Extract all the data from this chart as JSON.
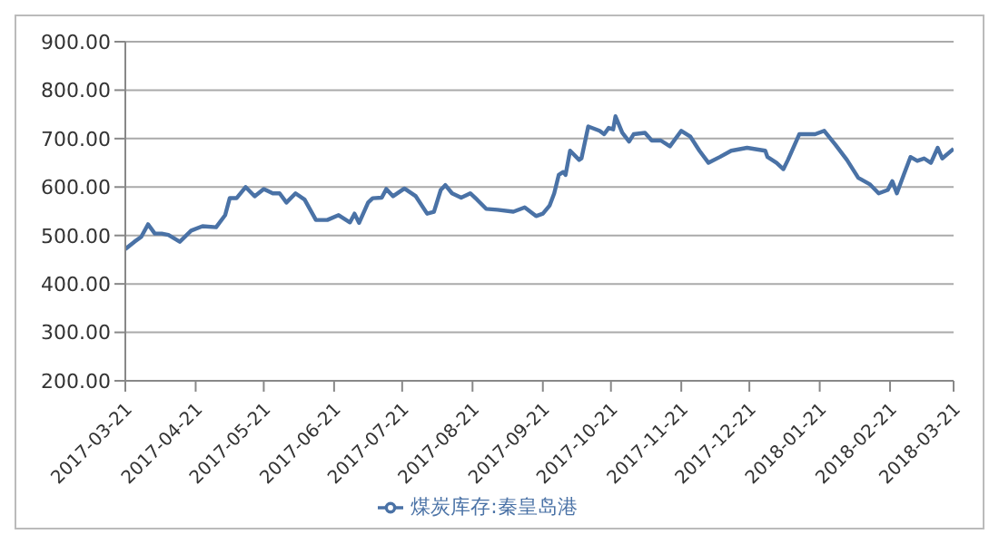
{
  "chart_data": {
    "type": "line",
    "legend": "bottom",
    "grid": "y",
    "marker": "none",
    "line_style": "solid",
    "xlim": [
      "2017-03-21",
      "2018-03-21"
    ],
    "xticks": [
      "2017-03-21",
      "2017-04-21",
      "2017-05-21",
      "2017-06-21",
      "2017-07-21",
      "2017-08-21",
      "2017-09-21",
      "2017-10-21",
      "2017-11-21",
      "2017-12-21",
      "2018-01-21",
      "2018-02-21",
      "2018-03-21"
    ],
    "ylim": [
      200,
      900
    ],
    "yticks": [
      {
        "value": 200,
        "label": "200.00"
      },
      {
        "value": 300,
        "label": "300.00"
      },
      {
        "value": 400,
        "label": "400.00"
      },
      {
        "value": 500,
        "label": "500.00"
      },
      {
        "value": 600,
        "label": "600.00"
      },
      {
        "value": 700,
        "label": "700.00"
      },
      {
        "value": 800,
        "label": "800.00"
      },
      {
        "value": 900,
        "label": "900.00"
      }
    ],
    "x": [
      "2017-03-21",
      "2017-03-25",
      "2017-03-28",
      "2017-03-31",
      "2017-04-03",
      "2017-04-06",
      "2017-04-09",
      "2017-04-14",
      "2017-04-19",
      "2017-04-24",
      "2017-04-30",
      "2017-05-04",
      "2017-05-06",
      "2017-05-09",
      "2017-05-13",
      "2017-05-17",
      "2017-05-21",
      "2017-05-25",
      "2017-05-28",
      "2017-05-31",
      "2017-06-04",
      "2017-06-08",
      "2017-06-13",
      "2017-06-18",
      "2017-06-23",
      "2017-06-28",
      "2017-06-30",
      "2017-07-02",
      "2017-07-06",
      "2017-07-08",
      "2017-07-12",
      "2017-07-14",
      "2017-07-17",
      "2017-07-22",
      "2017-07-27",
      "2017-08-01",
      "2017-08-04",
      "2017-08-07",
      "2017-08-09",
      "2017-08-12",
      "2017-08-16",
      "2017-08-20",
      "2017-08-23",
      "2017-08-27",
      "2017-09-01",
      "2017-09-08",
      "2017-09-13",
      "2017-09-18",
      "2017-09-21",
      "2017-09-24",
      "2017-09-26",
      "2017-09-28",
      "2017-09-30",
      "2017-10-01",
      "2017-10-03",
      "2017-10-07",
      "2017-10-08",
      "2017-10-11",
      "2017-10-16",
      "2017-10-18",
      "2017-10-20",
      "2017-10-22",
      "2017-10-23",
      "2017-10-26",
      "2017-10-29",
      "2017-10-31",
      "2017-11-05",
      "2017-11-08",
      "2017-11-12",
      "2017-11-16",
      "2017-11-21",
      "2017-11-25",
      "2017-11-29",
      "2017-12-03",
      "2017-12-08",
      "2017-12-13",
      "2017-12-20",
      "2017-12-28",
      "2017-12-29",
      "2018-01-02",
      "2018-01-05",
      "2018-01-07",
      "2018-01-12",
      "2018-01-19",
      "2018-01-23",
      "2018-01-28",
      "2018-02-02",
      "2018-02-07",
      "2018-02-12",
      "2018-02-16",
      "2018-02-20",
      "2018-02-22",
      "2018-02-24",
      "2018-02-27",
      "2018-03-02",
      "2018-03-05",
      "2018-03-08",
      "2018-03-11",
      "2018-03-14",
      "2018-03-16",
      "2018-03-21"
    ],
    "series": [
      {
        "name": "煤炭库存:秦皇岛港",
        "color": "#4a72a6",
        "values": [
          472,
          487,
          497,
          523,
          504,
          504,
          501,
          487,
          510,
          519,
          517,
          542,
          577,
          577,
          600,
          581,
          596,
          587,
          587,
          568,
          587,
          574,
          532,
          532,
          542,
          527,
          545,
          526,
          568,
          577,
          578,
          596,
          581,
          597,
          581,
          545,
          549,
          594,
          604,
          587,
          578,
          587,
          574,
          555,
          553,
          549,
          558,
          540,
          545,
          562,
          587,
          625,
          631,
          625,
          675,
          656,
          659,
          725,
          716,
          709,
          722,
          719,
          746,
          712,
          694,
          709,
          712,
          696,
          696,
          684,
          716,
          704,
          675,
          650,
          662,
          675,
          681,
          675,
          662,
          650,
          637,
          656,
          709,
          709,
          716,
          687,
          656,
          619,
          606,
          587,
          594,
          612,
          587,
          625,
          662,
          654,
          659,
          650,
          681,
          659,
          679
        ]
      }
    ]
  }
}
